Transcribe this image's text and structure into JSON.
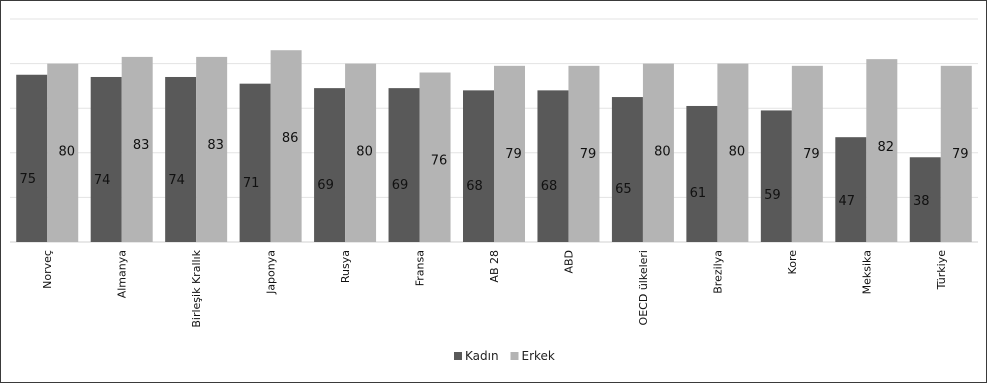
{
  "chart_data": {
    "type": "bar",
    "categories": [
      "Norveç",
      "Almanya",
      "Birleşik Krallık",
      "Japonya",
      "Rusya",
      "Fransa",
      "AB 28",
      "ABD",
      "OECD ülkeleri",
      "Brezilya",
      "Kore",
      "Meksika",
      "Türkiye"
    ],
    "series": [
      {
        "name": "Kadın",
        "color": "#595959",
        "values": [
          75,
          74,
          74,
          71,
          69,
          69,
          68,
          68,
          65,
          61,
          59,
          47,
          38
        ]
      },
      {
        "name": "Erkek",
        "color": "#b4b4b4",
        "values": [
          80,
          83,
          83,
          86,
          80,
          76,
          79,
          79,
          80,
          80,
          79,
          82,
          79
        ]
      }
    ],
    "title": "",
    "xlabel": "",
    "ylabel": "",
    "ylim": [
      0,
      100
    ],
    "grid": true,
    "legend_position": "bottom"
  }
}
